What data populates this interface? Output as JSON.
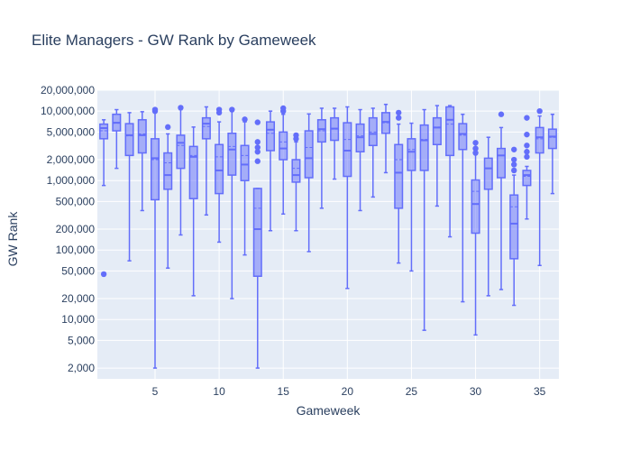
{
  "chart_data": {
    "type": "box",
    "title": "Elite Managers - GW Rank by Gameweek",
    "xlabel": "Gameweek",
    "ylabel": "GW Rank",
    "y_scale": "log",
    "ylim": [
      1400,
      20000000
    ],
    "xlim": [
      0.5,
      36.5
    ],
    "x_ticks": [
      5,
      10,
      15,
      20,
      25,
      30,
      35
    ],
    "x_tick_labels": [
      "5",
      "10",
      "15",
      "20",
      "25",
      "30",
      "35"
    ],
    "y_ticks": [
      2000,
      5000,
      10000,
      20000,
      50000,
      100000,
      200000,
      500000,
      1000000,
      2000000,
      5000000,
      10000000,
      20000000
    ],
    "y_tick_labels": [
      "2,000",
      "5,000",
      "10,000",
      "20,000",
      "50,000",
      "100,000",
      "200,000",
      "500,000",
      "1,000,000",
      "2,000,000",
      "5,000,000",
      "10,000,000",
      "20,000,000"
    ],
    "colors": {
      "box_line": "#636efa",
      "box_fill": "rgba(99,110,250,0.5)",
      "plot_bg": "#e5ecf6",
      "grid": "#ffffff",
      "text": "#2a3f5f"
    },
    "grid": true,
    "legend": "none",
    "boxes": [
      {
        "x": 1,
        "q1": 4000000,
        "median": 5700000,
        "q3": 6500000,
        "low": 850000,
        "high": 7500000,
        "mean": 5200000,
        "outliers": [
          45000
        ]
      },
      {
        "x": 2,
        "q1": 5200000,
        "median": 6800000,
        "q3": 9000000,
        "low": 1500000,
        "high": 10500000,
        "mean": 6700000,
        "outliers": []
      },
      {
        "x": 3,
        "q1": 2300000,
        "median": 4500000,
        "q3": 6600000,
        "low": 70000,
        "high": 9500000,
        "mean": 4400000,
        "outliers": []
      },
      {
        "x": 4,
        "q1": 2500000,
        "median": 4500000,
        "q3": 7500000,
        "low": 370000,
        "high": 9800000,
        "mean": 4700000,
        "outliers": []
      },
      {
        "x": 5,
        "q1": 530000,
        "median": 2100000,
        "q3": 4000000,
        "low": 2000,
        "high": 9500000,
        "mean": 2000000,
        "outliers": [
          10000000,
          10500000
        ]
      },
      {
        "x": 6,
        "q1": 750000,
        "median": 1200000,
        "q3": 2500000,
        "low": 55000,
        "high": 4700000,
        "mean": 1800000,
        "outliers": [
          5900000
        ]
      },
      {
        "x": 7,
        "q1": 1500000,
        "median": 3500000,
        "q3": 4500000,
        "low": 165000,
        "high": 10500000,
        "mean": 3200000,
        "outliers": [
          11200000
        ]
      },
      {
        "x": 8,
        "q1": 550000,
        "median": 2200000,
        "q3": 3100000,
        "low": 22000,
        "high": 5900000,
        "mean": 2300000,
        "outliers": []
      },
      {
        "x": 9,
        "q1": 4000000,
        "median": 6600000,
        "q3": 8000000,
        "low": 320000,
        "high": 11500000,
        "mean": 6000000,
        "outliers": []
      },
      {
        "x": 10,
        "q1": 650000,
        "median": 1400000,
        "q3": 3300000,
        "low": 130000,
        "high": 7000000,
        "mean": 2200000,
        "outliers": [
          9500000,
          10500000
        ]
      },
      {
        "x": 11,
        "q1": 1200000,
        "median": 2800000,
        "q3": 4800000,
        "low": 20000,
        "high": 10300000,
        "mean": 3100000,
        "outliers": [
          10500000
        ]
      },
      {
        "x": 12,
        "q1": 1000000,
        "median": 1700000,
        "q3": 3200000,
        "low": 85000,
        "high": 7000000,
        "mean": 2300000,
        "outliers": [
          7600000
        ]
      },
      {
        "x": 13,
        "q1": 42000,
        "median": 200000,
        "q3": 770000,
        "low": 2000,
        "high": 770000,
        "mean": 400000,
        "outliers": [
          1900000,
          2600000,
          3000000,
          3600000,
          6900000
        ]
      },
      {
        "x": 14,
        "q1": 2700000,
        "median": 5400000,
        "q3": 7000000,
        "low": 190000,
        "high": 10000000,
        "mean": 4800000,
        "outliers": []
      },
      {
        "x": 15,
        "q1": 2000000,
        "median": 2900000,
        "q3": 5000000,
        "low": 330000,
        "high": 9000000,
        "mean": 3600000,
        "outliers": [
          10000000,
          11000000
        ]
      },
      {
        "x": 16,
        "q1": 950000,
        "median": 1200000,
        "q3": 2000000,
        "low": 190000,
        "high": 3600000,
        "mean": 1500000,
        "outliers": [
          4000000,
          4500000
        ]
      },
      {
        "x": 17,
        "q1": 1100000,
        "median": 2100000,
        "q3": 5200000,
        "low": 95000,
        "high": 9100000,
        "mean": 3000000,
        "outliers": []
      },
      {
        "x": 18,
        "q1": 3600000,
        "median": 5500000,
        "q3": 7500000,
        "low": 400000,
        "high": 11000000,
        "mean": 5200000,
        "outliers": []
      },
      {
        "x": 19,
        "q1": 3800000,
        "median": 5600000,
        "q3": 8000000,
        "low": 1050000,
        "high": 11000000,
        "mean": 5500000,
        "outliers": []
      },
      {
        "x": 20,
        "q1": 1150000,
        "median": 2700000,
        "q3": 6800000,
        "low": 28000,
        "high": 11500000,
        "mean": 3900000,
        "outliers": []
      },
      {
        "x": 21,
        "q1": 2600000,
        "median": 4200000,
        "q3": 6500000,
        "low": 370000,
        "high": 10500000,
        "mean": 4400000,
        "outliers": []
      },
      {
        "x": 22,
        "q1": 3200000,
        "median": 4700000,
        "q3": 8000000,
        "low": 580000,
        "high": 11000000,
        "mean": 5000000,
        "outliers": []
      },
      {
        "x": 23,
        "q1": 4800000,
        "median": 7000000,
        "q3": 9500000,
        "low": 1300000,
        "high": 12500000,
        "mean": 6800000,
        "outliers": []
      },
      {
        "x": 24,
        "q1": 400000,
        "median": 1300000,
        "q3": 3300000,
        "low": 65000,
        "high": 6500000,
        "mean": 2000000,
        "outliers": [
          8000000,
          9500000
        ]
      },
      {
        "x": 25,
        "q1": 1400000,
        "median": 2600000,
        "q3": 4000000,
        "low": 50000,
        "high": 6700000,
        "mean": 2800000,
        "outliers": []
      },
      {
        "x": 26,
        "q1": 1400000,
        "median": 3800000,
        "q3": 6300000,
        "low": 7000,
        "high": 10500000,
        "mean": 3900000,
        "outliers": []
      },
      {
        "x": 27,
        "q1": 3300000,
        "median": 5800000,
        "q3": 8000000,
        "low": 430000,
        "high": 12000000,
        "mean": 5900000,
        "outliers": []
      },
      {
        "x": 28,
        "q1": 2300000,
        "median": 7500000,
        "q3": 11500000,
        "low": 155000,
        "high": 12000000,
        "mean": 6500000,
        "outliers": []
      },
      {
        "x": 29,
        "q1": 2800000,
        "median": 4700000,
        "q3": 6600000,
        "low": 18000,
        "high": 9000000,
        "mean": 4500000,
        "outliers": []
      },
      {
        "x": 30,
        "q1": 175000,
        "median": 460000,
        "q3": 1020000,
        "low": 6000,
        "high": 2400000,
        "mean": 700000,
        "outliers": [
          2500000,
          2900000,
          3500000
        ]
      },
      {
        "x": 31,
        "q1": 750000,
        "median": 1500000,
        "q3": 2100000,
        "low": 22000,
        "high": 4200000,
        "mean": 1500000,
        "outliers": []
      },
      {
        "x": 32,
        "q1": 1100000,
        "median": 2300000,
        "q3": 2900000,
        "low": 27000,
        "high": 5800000,
        "mean": 2300000,
        "outliers": [
          9000000
        ]
      },
      {
        "x": 33,
        "q1": 75000,
        "median": 240000,
        "q3": 620000,
        "low": 16000,
        "high": 1200000,
        "mean": 420000,
        "outliers": [
          1400000,
          1700000,
          2000000,
          2800000
        ]
      },
      {
        "x": 34,
        "q1": 850000,
        "median": 1200000,
        "q3": 1400000,
        "low": 280000,
        "high": 1600000,
        "mean": 1150000,
        "outliers": [
          2200000,
          2600000,
          3200000,
          4600000,
          8000000
        ]
      },
      {
        "x": 35,
        "q1": 2500000,
        "median": 4200000,
        "q3": 5800000,
        "low": 60000,
        "high": 8500000,
        "mean": 4000000,
        "outliers": [
          10000000
        ]
      },
      {
        "x": 36,
        "q1": 2900000,
        "median": 4300000,
        "q3": 5500000,
        "low": 650000,
        "high": 9000000,
        "mean": 4200000,
        "outliers": []
      }
    ]
  }
}
